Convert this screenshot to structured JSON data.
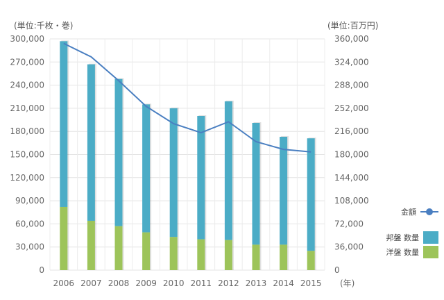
{
  "chart_data": {
    "type": "bar+line",
    "left_axis_label": "(単位:千枚・巻)",
    "right_axis_label": "(単位:百万円)",
    "x_unit_label": "(年)",
    "categories": [
      "2006",
      "2007",
      "2008",
      "2009",
      "2010",
      "2011",
      "2012",
      "2013",
      "2014",
      "2015"
    ],
    "left_ticks": [
      "300,000",
      "270,000",
      "240,000",
      "210,000",
      "180,000",
      "150,000",
      "120,000",
      "90,000",
      "60,000",
      "30,000",
      "0"
    ],
    "right_ticks": [
      "360,000",
      "324,000",
      "288,000",
      "252,000",
      "216,000",
      "180,000",
      "144,000",
      "108,000",
      "72,000",
      "36,000",
      "0"
    ],
    "ylim_left": [
      0,
      300000
    ],
    "ylim_right": [
      0,
      360000
    ],
    "series": [
      {
        "name": "洋盤 数量",
        "axis": "left",
        "type": "stacked-bar",
        "color": "#9dc45a",
        "values": [
          82000,
          64000,
          57000,
          49000,
          43000,
          40000,
          39000,
          33000,
          33000,
          25000
        ]
      },
      {
        "name": "邦盤 数量",
        "axis": "left",
        "type": "stacked-bar",
        "color": "#4bacc6",
        "values": [
          215000,
          203000,
          191000,
          166000,
          167000,
          160000,
          180000,
          158000,
          140000,
          146000
        ]
      },
      {
        "name": "金額",
        "axis": "right",
        "type": "line",
        "color": "#4a7fc1",
        "values": [
          353000,
          332000,
          295000,
          255000,
          228000,
          214000,
          231000,
          200000,
          188000,
          184000
        ]
      }
    ],
    "legend": [
      {
        "label": "金額",
        "kind": "line",
        "color": "#4a7fc1"
      },
      {
        "label": "邦盤 数量",
        "kind": "bar",
        "color": "#4bacc6"
      },
      {
        "label": "洋盤 数量",
        "kind": "bar",
        "color": "#9dc45a"
      }
    ]
  }
}
